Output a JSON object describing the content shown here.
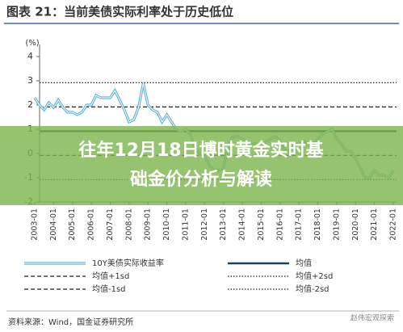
{
  "chart_data": {
    "type": "line",
    "title": "图表 21：当前美债实际利率处于历史低位",
    "y_label": "(%)",
    "x": [
      "2003-01",
      "2003-04",
      "2003-07",
      "2003-10",
      "2004-01",
      "2004-04",
      "2004-07",
      "2004-10",
      "2005-01",
      "2005-04",
      "2005-07",
      "2005-10",
      "2006-01",
      "2006-04",
      "2006-07",
      "2006-10",
      "2007-01",
      "2007-04",
      "2007-07",
      "2007-10",
      "2008-01",
      "2008-04",
      "2008-07",
      "2008-10",
      "2009-01",
      "2009-04",
      "2009-07",
      "2009-10",
      "2010-01",
      "2010-04",
      "2010-07",
      "2010-10",
      "2011-01",
      "2011-04",
      "2011-07",
      "2011-10",
      "2012-01",
      "2012-04",
      "2012-07",
      "2012-10",
      "2013-01",
      "2013-04",
      "2013-07",
      "2013-10",
      "2014-01",
      "2014-04",
      "2014-07",
      "2014-10",
      "2015-01",
      "2015-04",
      "2015-07",
      "2015-10",
      "2016-01",
      "2016-04",
      "2016-07",
      "2016-10",
      "2017-01",
      "2017-04",
      "2017-07",
      "2017-10",
      "2018-01",
      "2018-04",
      "2018-07",
      "2018-10",
      "2019-01",
      "2019-04",
      "2019-07",
      "2019-10",
      "2020-01",
      "2020-04",
      "2020-07",
      "2020-10",
      "2021-01",
      "2021-04",
      "2021-07",
      "2021-10",
      "2022-01"
    ],
    "xlim": [
      "2003-01",
      "2022-01"
    ],
    "xticks": [
      "2003-01",
      "2004-01",
      "2005-01",
      "2006-01",
      "2007-01",
      "2008-01",
      "2009-01",
      "2010-01",
      "2011-01",
      "2012-01",
      "2013-01",
      "2014-01",
      "2015-01",
      "2016-01",
      "2017-01",
      "2018-01",
      "2019-01",
      "2020-01",
      "2021-01",
      "2022-01"
    ],
    "series": [
      {
        "name": "10Y美债实际收益率",
        "color": "#5fb0d8",
        "values": [
          2.3,
          2.0,
          1.8,
          2.1,
          1.9,
          2.2,
          1.9,
          1.7,
          1.7,
          1.6,
          1.7,
          2.0,
          2.0,
          2.4,
          2.3,
          2.3,
          2.3,
          2.6,
          2.2,
          1.8,
          1.3,
          1.4,
          1.9,
          2.9,
          2.0,
          1.8,
          1.7,
          1.3,
          1.6,
          1.3,
          1.0,
          0.9,
          1.0,
          0.8,
          0.2,
          0.0,
          -0.1,
          -0.5,
          -0.7,
          -0.7,
          -0.6,
          0.3,
          0.7,
          0.7,
          0.6,
          0.4,
          0.4,
          0.4,
          0.2,
          0.5,
          0.6,
          0.7,
          0.5,
          0.1,
          0.1,
          0.3,
          0.4,
          0.5,
          0.4,
          0.4,
          0.6,
          0.8,
          0.9,
          1.0,
          0.6,
          0.4,
          0.1,
          0.1,
          -0.2,
          -0.6,
          -1.0,
          -1.0,
          -0.7,
          -0.9,
          -0.9,
          -1.0,
          -0.7
        ]
      }
    ],
    "reference_lines": [
      {
        "name": "均值",
        "value": 0.92,
        "style": "solid",
        "color": "#1f3d6b"
      },
      {
        "name": "均值+1sd",
        "value": 1.92,
        "style": "dashed",
        "color": "#222222"
      },
      {
        "name": "均值+2sd",
        "value": 2.92,
        "style": "dotted",
        "color": "#222222"
      },
      {
        "name": "均值-1sd",
        "value": -0.08,
        "style": "dashed",
        "color": "#222222"
      },
      {
        "name": "均值-2sd",
        "value": -1.08,
        "style": "dotted",
        "color": "#222222"
      }
    ],
    "ylim": [
      -2,
      4.5
    ],
    "yticks": [
      -2,
      -1,
      0,
      1,
      2,
      3,
      4
    ],
    "source": "资料来源：Wind，国金证券研究所"
  },
  "watermark": "赵伟宏观探索",
  "overlay_title": [
    "往年12月18日博时黄金实时基",
    "础金价分析与解读"
  ]
}
